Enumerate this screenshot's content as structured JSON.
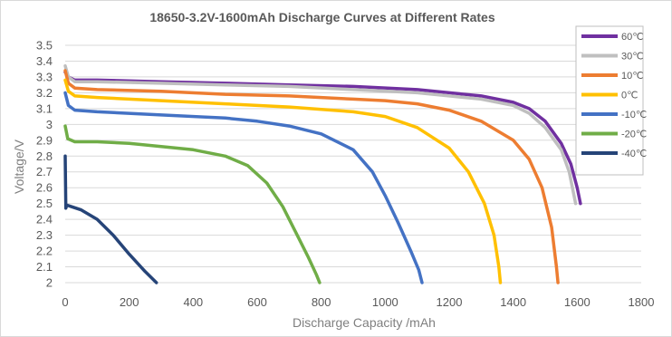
{
  "chart_data": {
    "type": "line",
    "title": "18650-3.2V-1600mAh Discharge Curves at Different Rates",
    "xlabel": "Discharge Capacity /mAh",
    "ylabel": "Voltage/V",
    "xlim": [
      0,
      1800
    ],
    "ylim": [
      2,
      3.5
    ],
    "x_ticks": [
      "0",
      "200",
      "400",
      "600",
      "800",
      "1000",
      "1200",
      "1400",
      "1600",
      "1800"
    ],
    "y_ticks": [
      "2",
      "2.1",
      "2.2",
      "2.3",
      "2.4",
      "2.5",
      "2.6",
      "2.7",
      "2.8",
      "2.9",
      "3",
      "3.1",
      "3.2",
      "3.3",
      "3.4",
      "3.5"
    ],
    "grid": "horizontal",
    "legend_position": "top-right",
    "series": [
      {
        "name": "60℃",
        "color": "#7030a0",
        "points": [
          [
            0,
            3.33
          ],
          [
            10,
            3.3
          ],
          [
            30,
            3.28
          ],
          [
            100,
            3.28
          ],
          [
            300,
            3.27
          ],
          [
            500,
            3.26
          ],
          [
            700,
            3.25
          ],
          [
            900,
            3.24
          ],
          [
            1100,
            3.22
          ],
          [
            1200,
            3.2
          ],
          [
            1300,
            3.18
          ],
          [
            1350,
            3.16
          ],
          [
            1400,
            3.14
          ],
          [
            1450,
            3.1
          ],
          [
            1500,
            3.02
          ],
          [
            1550,
            2.88
          ],
          [
            1580,
            2.75
          ],
          [
            1600,
            2.6
          ],
          [
            1610,
            2.5
          ]
        ]
      },
      {
        "name": "30℃",
        "color": "#bfbfbf",
        "points": [
          [
            0,
            3.37
          ],
          [
            10,
            3.3
          ],
          [
            30,
            3.27
          ],
          [
            100,
            3.27
          ],
          [
            300,
            3.26
          ],
          [
            500,
            3.25
          ],
          [
            700,
            3.24
          ],
          [
            900,
            3.22
          ],
          [
            1100,
            3.2
          ],
          [
            1200,
            3.18
          ],
          [
            1300,
            3.16
          ],
          [
            1350,
            3.14
          ],
          [
            1400,
            3.12
          ],
          [
            1450,
            3.07
          ],
          [
            1500,
            2.98
          ],
          [
            1550,
            2.84
          ],
          [
            1575,
            2.7
          ],
          [
            1590,
            2.55
          ],
          [
            1595,
            2.5
          ]
        ]
      },
      {
        "name": "10℃",
        "color": "#ed7d31",
        "points": [
          [
            0,
            3.34
          ],
          [
            10,
            3.26
          ],
          [
            30,
            3.23
          ],
          [
            100,
            3.22
          ],
          [
            300,
            3.21
          ],
          [
            500,
            3.19
          ],
          [
            700,
            3.18
          ],
          [
            900,
            3.16
          ],
          [
            1000,
            3.15
          ],
          [
            1100,
            3.13
          ],
          [
            1200,
            3.09
          ],
          [
            1300,
            3.02
          ],
          [
            1400,
            2.9
          ],
          [
            1450,
            2.78
          ],
          [
            1490,
            2.6
          ],
          [
            1520,
            2.35
          ],
          [
            1535,
            2.1
          ],
          [
            1540,
            2.0
          ]
        ]
      },
      {
        "name": "0℃",
        "color": "#ffc000",
        "points": [
          [
            0,
            3.28
          ],
          [
            10,
            3.21
          ],
          [
            30,
            3.18
          ],
          [
            100,
            3.17
          ],
          [
            300,
            3.15
          ],
          [
            500,
            3.13
          ],
          [
            700,
            3.11
          ],
          [
            900,
            3.08
          ],
          [
            1000,
            3.05
          ],
          [
            1100,
            2.98
          ],
          [
            1200,
            2.85
          ],
          [
            1260,
            2.7
          ],
          [
            1310,
            2.5
          ],
          [
            1340,
            2.3
          ],
          [
            1355,
            2.1
          ],
          [
            1360,
            2.0
          ]
        ]
      },
      {
        "name": "-10℃",
        "color": "#4472c4",
        "points": [
          [
            0,
            3.2
          ],
          [
            10,
            3.12
          ],
          [
            30,
            3.09
          ],
          [
            100,
            3.08
          ],
          [
            300,
            3.06
          ],
          [
            500,
            3.04
          ],
          [
            600,
            3.02
          ],
          [
            700,
            2.99
          ],
          [
            800,
            2.94
          ],
          [
            900,
            2.84
          ],
          [
            960,
            2.7
          ],
          [
            1000,
            2.55
          ],
          [
            1040,
            2.38
          ],
          [
            1080,
            2.2
          ],
          [
            1105,
            2.08
          ],
          [
            1115,
            2.0
          ]
        ]
      },
      {
        "name": "-20℃",
        "color": "#70ad47",
        "points": [
          [
            0,
            2.99
          ],
          [
            8,
            2.91
          ],
          [
            30,
            2.89
          ],
          [
            100,
            2.89
          ],
          [
            200,
            2.88
          ],
          [
            300,
            2.86
          ],
          [
            400,
            2.84
          ],
          [
            500,
            2.8
          ],
          [
            570,
            2.74
          ],
          [
            630,
            2.63
          ],
          [
            680,
            2.48
          ],
          [
            720,
            2.32
          ],
          [
            760,
            2.16
          ],
          [
            785,
            2.05
          ],
          [
            795,
            2.0
          ]
        ]
      },
      {
        "name": "-40℃",
        "color": "#264478",
        "points": [
          [
            0,
            2.8
          ],
          [
            2,
            2.47
          ],
          [
            5,
            2.49
          ],
          [
            20,
            2.48
          ],
          [
            50,
            2.46
          ],
          [
            100,
            2.4
          ],
          [
            150,
            2.3
          ],
          [
            200,
            2.18
          ],
          [
            250,
            2.07
          ],
          [
            285,
            2.0
          ]
        ]
      }
    ]
  }
}
